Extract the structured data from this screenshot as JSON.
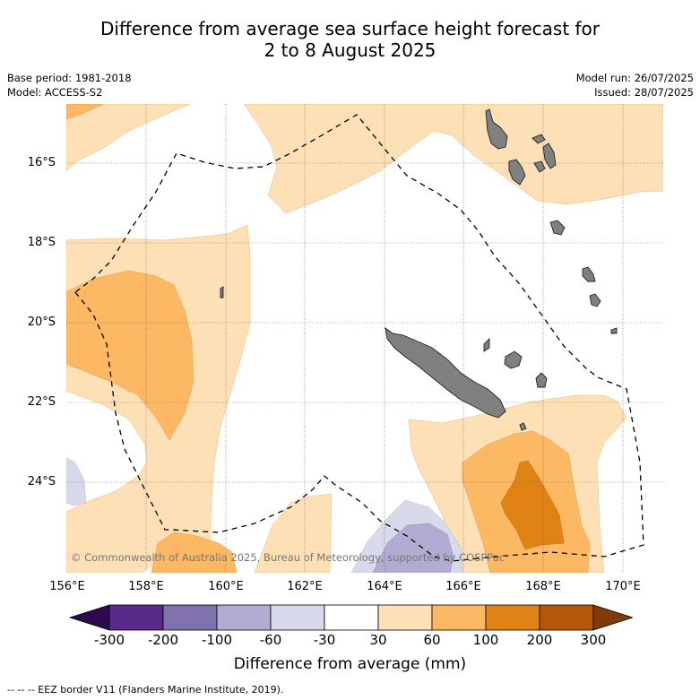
{
  "title_line1": "Difference from average sea surface height forecast for",
  "title_line2": "2 to 8 August 2025",
  "base_period": "Base period: 1981-2018",
  "model": "Model: ACCESS-S2",
  "model_run": "Model run: 26/07/2025",
  "issued": "Issued: 28/07/2025",
  "lat_ticks": [
    "16°S",
    "18°S",
    "20°S",
    "22°S",
    "24°S"
  ],
  "lon_ticks": [
    "156°E",
    "158°E",
    "160°E",
    "162°E",
    "164°E",
    "166°E",
    "168°E",
    "170°E"
  ],
  "copyright": "© Commonwealth of Australia 2025, Bureau of Meteorology, supported by COSPPac",
  "colorbar": {
    "labels": [
      "-300",
      "-200",
      "-100",
      "-60",
      "-30",
      "30",
      "60",
      "100",
      "200",
      "300"
    ],
    "colors": [
      "#2d0a4e",
      "#5a2a8a",
      "#8073ac",
      "#b2abd2",
      "#d8daeb",
      "#ffffff",
      "#fee0b6",
      "#fdb863",
      "#e08214",
      "#b35806",
      "#7f3b08"
    ],
    "title": "Difference from average (mm)"
  },
  "legend_note": "-- -- -- EEZ border V11 (Flanders Marine Institute, 2019).",
  "colors": {
    "pos30_60": "#fee0b6",
    "pos60_100": "#fdb863",
    "pos100_200": "#e08214",
    "neg30_60": "#d8daeb",
    "neg60_100": "#b2abd2",
    "land": "#808080"
  }
}
